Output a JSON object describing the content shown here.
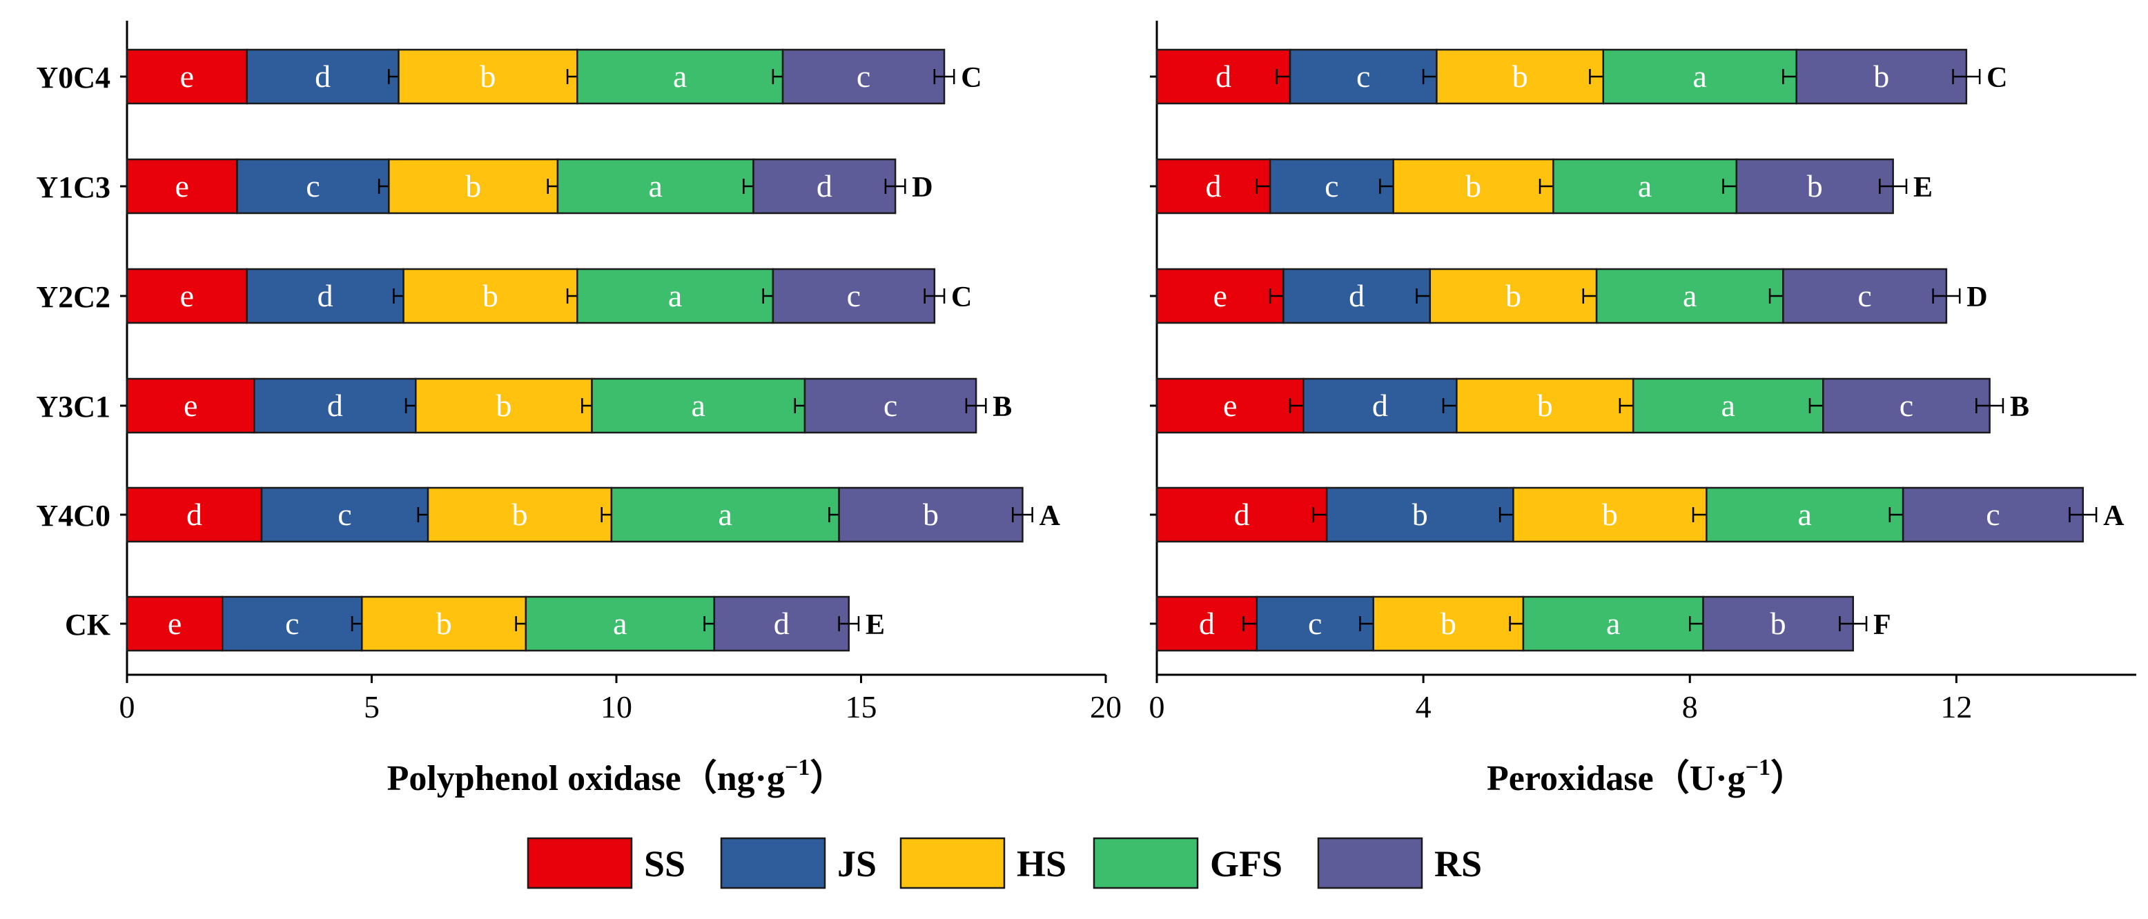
{
  "legend": [
    {
      "label": "SS",
      "color": "#E8000B"
    },
    {
      "label": "JS",
      "color": "#2F5C9A"
    },
    {
      "label": "HS",
      "color": "#FFC20E"
    },
    {
      "label": "GFS",
      "color": "#3CBE6C"
    },
    {
      "label": "RS",
      "color": "#5E5B99"
    }
  ],
  "chart_data": [
    {
      "type": "bar",
      "orientation": "horizontal",
      "stacked": true,
      "xlabel_main": "Polyphenol oxidase",
      "xlabel_unit": "（ng·g",
      "xlabel_sup": "−1",
      "xlabel_close": "）",
      "xlim": [
        0,
        20
      ],
      "xticks": [
        0,
        5,
        10,
        15,
        20
      ],
      "categories": [
        "Y0C4",
        "Y1C3",
        "Y2C2",
        "Y3C1",
        "Y4C0",
        "CK"
      ],
      "series": [
        {
          "name": "SS",
          "values": [
            2.45,
            2.25,
            2.45,
            2.6,
            2.75,
            1.95
          ],
          "errors": [
            0,
            0,
            0,
            0,
            0,
            0
          ],
          "letters": [
            "e",
            "e",
            "e",
            "e",
            "d",
            "e"
          ]
        },
        {
          "name": "JS",
          "values": [
            3.1,
            3.1,
            3.2,
            3.3,
            3.4,
            2.85
          ],
          "errors": [
            0.2,
            0.2,
            0.2,
            0.2,
            0.2,
            0.2
          ],
          "letters": [
            "d",
            "c",
            "d",
            "d",
            "c",
            "c"
          ]
        },
        {
          "name": "HS",
          "values": [
            3.65,
            3.45,
            3.55,
            3.6,
            3.75,
            3.35
          ],
          "errors": [
            0.2,
            0.2,
            0.2,
            0.2,
            0.2,
            0.2
          ],
          "letters": [
            "b",
            "b",
            "b",
            "b",
            "b",
            "b"
          ]
        },
        {
          "name": "GFS",
          "values": [
            4.2,
            4.0,
            4.0,
            4.35,
            4.65,
            3.85
          ],
          "errors": [
            0.2,
            0.2,
            0.2,
            0.2,
            0.2,
            0.2
          ],
          "letters": [
            "a",
            "a",
            "a",
            "a",
            "a",
            "a"
          ]
        },
        {
          "name": "RS",
          "values": [
            3.3,
            2.9,
            3.3,
            3.5,
            3.75,
            2.75
          ],
          "errors": [
            0.2,
            0.2,
            0.2,
            0.2,
            0.2,
            0.2
          ],
          "letters": [
            "c",
            "d",
            "c",
            "c",
            "b",
            "d"
          ]
        }
      ],
      "total_letters": [
        "C",
        "D",
        "C",
        "B",
        "A",
        "E"
      ]
    },
    {
      "type": "bar",
      "orientation": "horizontal",
      "stacked": true,
      "xlabel_main": "Peroxidase",
      "xlabel_unit": "（U·g",
      "xlabel_sup": "−1",
      "xlabel_close": "）",
      "xlim": [
        0,
        14.7
      ],
      "xticks": [
        0,
        4,
        8,
        12
      ],
      "categories": [
        "Y0C4",
        "Y1C3",
        "Y2C2",
        "Y3C1",
        "Y4C0",
        "CK"
      ],
      "series": [
        {
          "name": "SS",
          "values": [
            2.0,
            1.7,
            1.9,
            2.2,
            2.55,
            1.5
          ],
          "errors": [
            0.2,
            0.2,
            0.2,
            0.2,
            0.2,
            0.2
          ],
          "letters": [
            "d",
            "d",
            "e",
            "e",
            "d",
            "d"
          ]
        },
        {
          "name": "JS",
          "values": [
            2.2,
            1.85,
            2.2,
            2.3,
            2.8,
            1.75
          ],
          "errors": [
            0.2,
            0.2,
            0.2,
            0.2,
            0.2,
            0.2
          ],
          "letters": [
            "c",
            "c",
            "d",
            "d",
            "b",
            "c"
          ]
        },
        {
          "name": "HS",
          "values": [
            2.5,
            2.4,
            2.5,
            2.65,
            2.9,
            2.25
          ],
          "errors": [
            0.2,
            0.2,
            0.2,
            0.2,
            0.2,
            0.2
          ],
          "letters": [
            "b",
            "b",
            "b",
            "b",
            "b",
            "b"
          ]
        },
        {
          "name": "GFS",
          "values": [
            2.9,
            2.75,
            2.8,
            2.85,
            2.95,
            2.7
          ],
          "errors": [
            0.2,
            0.2,
            0.2,
            0.2,
            0.2,
            0.2
          ],
          "letters": [
            "a",
            "a",
            "a",
            "a",
            "a",
            "a"
          ]
        },
        {
          "name": "RS",
          "values": [
            2.55,
            2.35,
            2.45,
            2.5,
            2.7,
            2.25
          ],
          "errors": [
            0.2,
            0.2,
            0.2,
            0.2,
            0.2,
            0.2
          ],
          "letters": [
            "b",
            "b",
            "c",
            "c",
            "c",
            "b"
          ]
        }
      ],
      "total_letters": [
        "C",
        "E",
        "D",
        "B",
        "A",
        "F"
      ]
    }
  ]
}
